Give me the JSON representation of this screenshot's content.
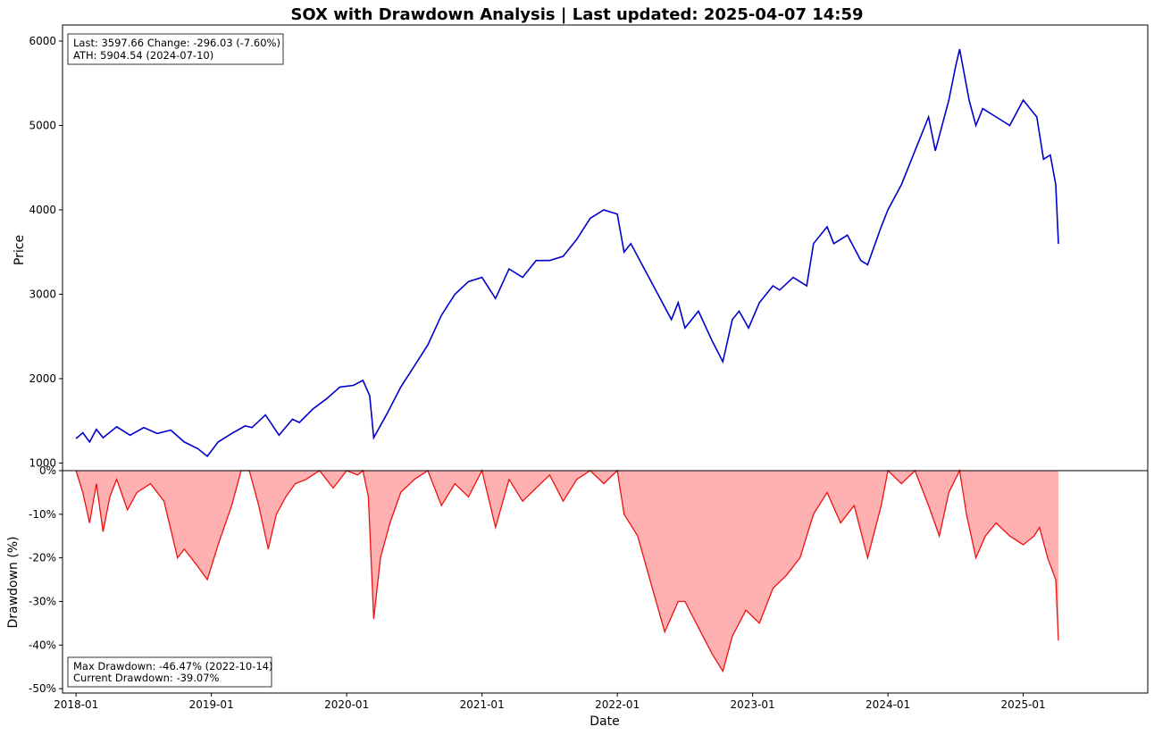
{
  "colors": {
    "price_line": "#0000cc",
    "drawdown_line": "#ee1111",
    "drawdown_fill": "#ffb0b0",
    "frame": "#000000"
  },
  "chart_data": [
    {
      "type": "line",
      "title": "SOX with Drawdown Analysis | Last updated: 2025-04-07 14:59",
      "xlabel": "",
      "ylabel": "Price",
      "ylim": [
        910,
        6190
      ],
      "y_ticks": [
        1000,
        2000,
        3000,
        4000,
        5000,
        6000
      ],
      "x_range_years": [
        2017.9,
        2025.92
      ],
      "grid": false,
      "info_box": {
        "line1": "Last: 3597.66  Change: -296.03 (-7.60%)",
        "line2": "ATH: 5904.54 (2024-07-10)",
        "placement": "top-left"
      },
      "series": [
        {
          "name": "SOX",
          "color": "#0000cc",
          "x": [
            2018.0,
            2018.05,
            2018.1,
            2018.15,
            2018.2,
            2018.3,
            2018.4,
            2018.5,
            2018.6,
            2018.7,
            2018.8,
            2018.9,
            2018.97,
            2019.05,
            2019.15,
            2019.25,
            2019.3,
            2019.4,
            2019.5,
            2019.6,
            2019.65,
            2019.75,
            2019.85,
            2019.95,
            2020.05,
            2020.12,
            2020.17,
            2020.2,
            2020.3,
            2020.4,
            2020.5,
            2020.6,
            2020.7,
            2020.8,
            2020.9,
            2021.0,
            2021.1,
            2021.2,
            2021.3,
            2021.4,
            2021.5,
            2021.6,
            2021.7,
            2021.8,
            2021.9,
            2022.0,
            2022.05,
            2022.1,
            2022.2,
            2022.3,
            2022.4,
            2022.45,
            2022.5,
            2022.6,
            2022.7,
            2022.78,
            2022.85,
            2022.9,
            2022.97,
            2023.05,
            2023.15,
            2023.2,
            2023.3,
            2023.4,
            2023.45,
            2023.55,
            2023.6,
            2023.7,
            2023.8,
            2023.85,
            2023.95,
            2024.0,
            2024.1,
            2024.2,
            2024.3,
            2024.35,
            2024.45,
            2024.5,
            2024.53,
            2024.6,
            2024.65,
            2024.7,
            2024.8,
            2024.9,
            2025.0,
            2025.1,
            2025.15,
            2025.2,
            2025.24,
            2025.26
          ],
          "values": [
            1290,
            1360,
            1250,
            1400,
            1300,
            1430,
            1330,
            1420,
            1350,
            1390,
            1250,
            1170,
            1080,
            1250,
            1350,
            1440,
            1420,
            1570,
            1330,
            1520,
            1480,
            1640,
            1760,
            1900,
            1920,
            1980,
            1800,
            1300,
            1590,
            1900,
            2150,
            2400,
            2750,
            3000,
            3150,
            3200,
            2950,
            3300,
            3200,
            3400,
            3400,
            3450,
            3650,
            3900,
            4000,
            3950,
            3500,
            3600,
            3300,
            3000,
            2700,
            2900,
            2600,
            2800,
            2450,
            2200,
            2700,
            2800,
            2600,
            2900,
            3100,
            3050,
            3200,
            3100,
            3600,
            3800,
            3600,
            3700,
            3400,
            3350,
            3800,
            4000,
            4300,
            4700,
            5100,
            4700,
            5300,
            5700,
            5904,
            5300,
            5000,
            5200,
            5100,
            5000,
            5300,
            5100,
            4600,
            4650,
            4300,
            3598
          ]
        }
      ]
    },
    {
      "type": "area",
      "title": "",
      "xlabel": "Date",
      "ylabel": "Drawdown (%)",
      "ylim": [
        -51,
        0
      ],
      "y_ticks": [
        0,
        -10,
        -20,
        -30,
        -40,
        -50
      ],
      "y_tick_labels": [
        "0%",
        "-10%",
        "-20%",
        "-30%",
        "-40%",
        "-50%"
      ],
      "x_range_years": [
        2017.9,
        2025.92
      ],
      "categories": [
        "2018-01",
        "2019-01",
        "2020-01",
        "2021-01",
        "2022-01",
        "2023-01",
        "2024-01",
        "2025-01"
      ],
      "grid": false,
      "info_box": {
        "line1": "Max Drawdown: -46.47% (2022-10-14)",
        "line2": "Current Drawdown: -39.07%",
        "placement": "bottom-left"
      },
      "series": [
        {
          "name": "Drawdown",
          "color": "#ee1111",
          "fill": "#ffb0b0",
          "x": [
            2018.0,
            2018.05,
            2018.1,
            2018.15,
            2018.2,
            2018.25,
            2018.3,
            2018.38,
            2018.45,
            2018.55,
            2018.65,
            2018.75,
            2018.8,
            2018.9,
            2018.97,
            2019.05,
            2019.15,
            2019.22,
            2019.28,
            2019.35,
            2019.42,
            2019.48,
            2019.55,
            2019.62,
            2019.7,
            2019.8,
            2019.9,
            2020.0,
            2020.08,
            2020.12,
            2020.16,
            2020.2,
            2020.25,
            2020.32,
            2020.4,
            2020.5,
            2020.6,
            2020.7,
            2020.8,
            2020.9,
            2021.0,
            2021.1,
            2021.2,
            2021.3,
            2021.4,
            2021.5,
            2021.6,
            2021.7,
            2021.8,
            2021.9,
            2022.0,
            2022.05,
            2022.15,
            2022.25,
            2022.35,
            2022.45,
            2022.5,
            2022.6,
            2022.7,
            2022.78,
            2022.85,
            2022.95,
            2023.05,
            2023.15,
            2023.25,
            2023.35,
            2023.45,
            2023.55,
            2023.65,
            2023.75,
            2023.85,
            2023.95,
            2024.0,
            2024.1,
            2024.2,
            2024.3,
            2024.38,
            2024.45,
            2024.53,
            2024.58,
            2024.65,
            2024.72,
            2024.8,
            2024.9,
            2025.0,
            2025.08,
            2025.12,
            2025.18,
            2025.24,
            2025.26
          ],
          "values": [
            0,
            -5,
            -12,
            -3,
            -14,
            -6,
            -2,
            -9,
            -5,
            -3,
            -7,
            -20,
            -18,
            -22,
            -25,
            -17,
            -8,
            0,
            0,
            -8,
            -18,
            -10,
            -6,
            -3,
            -2,
            0,
            -4,
            0,
            -1,
            0,
            -6,
            -34,
            -20,
            -12,
            -5,
            -2,
            0,
            -8,
            -3,
            -6,
            0,
            -13,
            -2,
            -7,
            -4,
            -1,
            -7,
            -2,
            0,
            -3,
            0,
            -10,
            -15,
            -26,
            -37,
            -30,
            -30,
            -36,
            -42,
            -46,
            -38,
            -32,
            -35,
            -27,
            -24,
            -20,
            -10,
            -5,
            -12,
            -8,
            -20,
            -8,
            0,
            -3,
            0,
            -8,
            -15,
            -5,
            0,
            -10,
            -20,
            -15,
            -12,
            -15,
            -17,
            -15,
            -13,
            -20,
            -25,
            -39
          ]
        }
      ]
    }
  ]
}
